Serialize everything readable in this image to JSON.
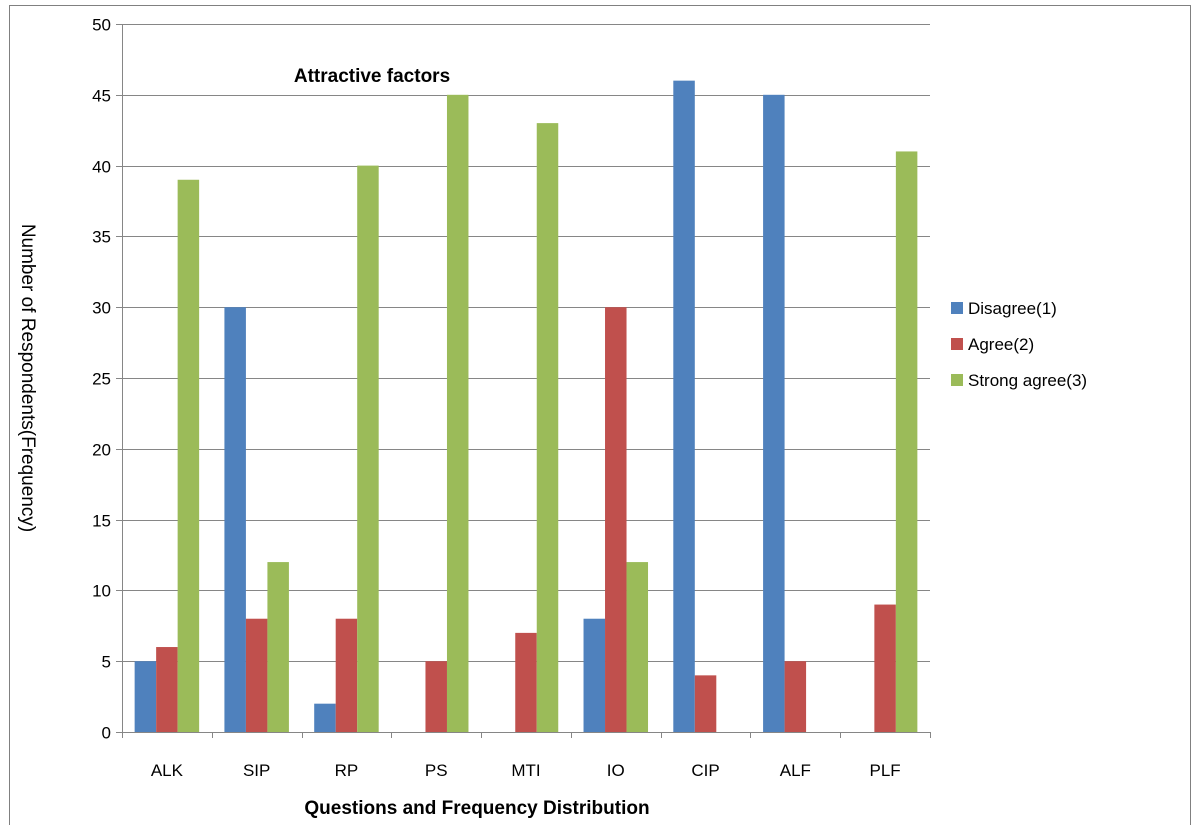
{
  "chart_data": {
    "type": "bar",
    "title": "Attractive factors",
    "xlabel": "Questions and Frequency Distribution",
    "ylabel": "Number of Respondents(Frequency)",
    "categories": [
      "ALK",
      "SIP",
      "RP",
      "PS",
      "MTI",
      "IO",
      "CIP",
      "ALF",
      "PLF"
    ],
    "series": [
      {
        "name": "Disagree(1)",
        "color": "#4F81BD",
        "values": [
          5,
          30,
          2,
          0,
          0,
          8,
          46,
          45,
          0
        ]
      },
      {
        "name": "Agree(2)",
        "color": "#C0504D",
        "values": [
          6,
          8,
          8,
          5,
          7,
          30,
          4,
          5,
          9
        ]
      },
      {
        "name": "Strong agree(3)",
        "color": "#9BBB59",
        "values": [
          39,
          12,
          40,
          45,
          43,
          12,
          0,
          0,
          41
        ]
      }
    ],
    "ylim": [
      0,
      50
    ],
    "yticks": [
      0,
      5,
      10,
      15,
      20,
      25,
      30,
      35,
      40,
      45,
      50
    ],
    "grid": true,
    "legend_position": "right"
  }
}
